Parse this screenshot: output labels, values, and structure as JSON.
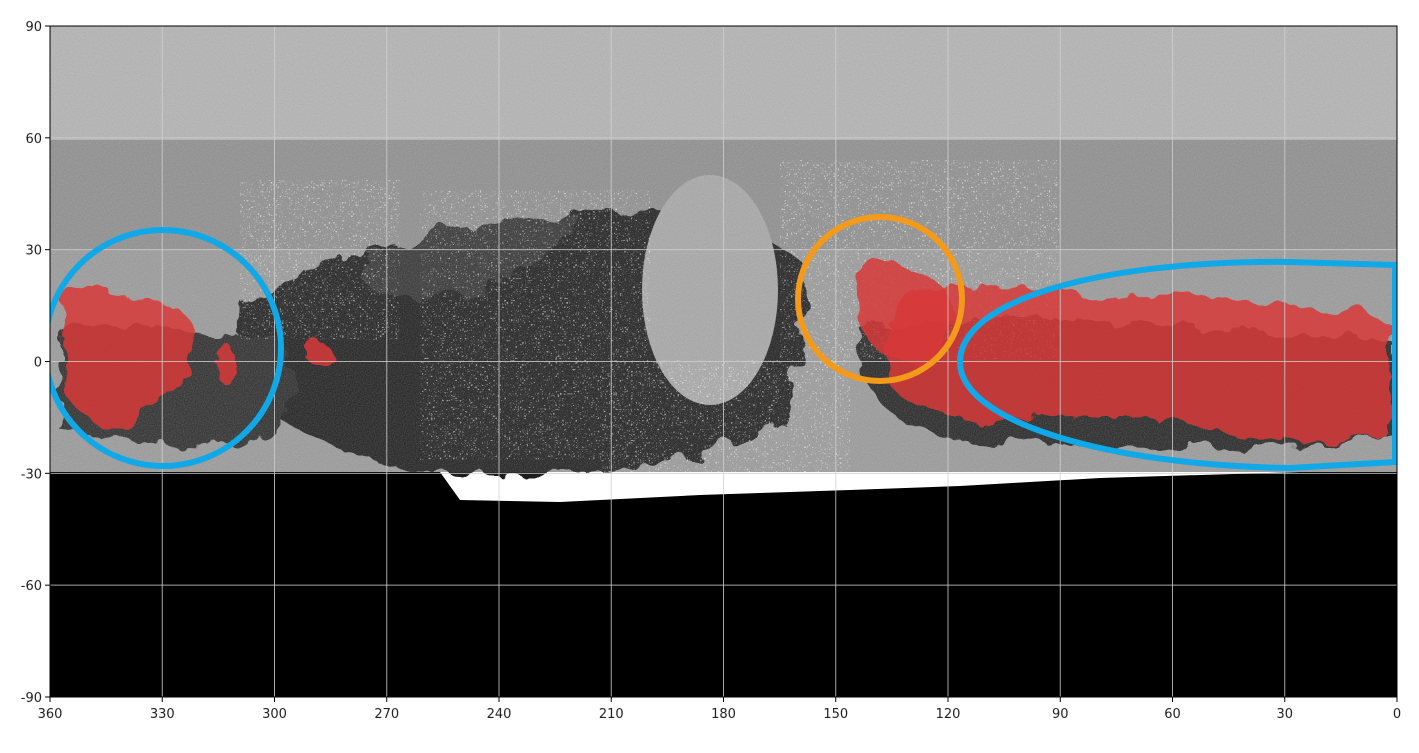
{
  "map": {
    "projection": "equirectangular",
    "longitude_axis": {
      "direction": "decreasing-left-to-right",
      "range": [
        360,
        0
      ],
      "ticks": [
        "360",
        "330",
        "300",
        "270",
        "240",
        "210",
        "180",
        "150",
        "120",
        "90",
        "60",
        "30",
        "0"
      ]
    },
    "latitude_axis": {
      "range": [
        -90,
        90
      ],
      "ticks": [
        "90",
        "60",
        "30",
        "0",
        "-30",
        "-60",
        "-90"
      ]
    },
    "grid": true,
    "colors": {
      "highlight_overlay": "#d83a3a",
      "circle_blue": "#11a8e8",
      "circle_orange": "#f39a1a",
      "no_data": "#000000",
      "grid_line": "#d0d0d0"
    },
    "regions": [
      {
        "name": "red-overlay-west",
        "lon_center": 340,
        "lat_center": 0
      },
      {
        "name": "red-overlay-center",
        "lon_center": 140,
        "lat_center": 17
      },
      {
        "name": "red-overlay-east",
        "lon_center": 55,
        "lat_center": 0
      }
    ],
    "annotations": [
      {
        "shape": "ellipse",
        "color": "blue",
        "lon_range": [
          362,
          300
        ],
        "lat_range": [
          -28,
          35
        ]
      },
      {
        "shape": "circle",
        "color": "orange",
        "lon_range": [
          160,
          122
        ],
        "lat_range": [
          -5,
          37
        ]
      },
      {
        "shape": "ellipse",
        "color": "blue",
        "lon_range": [
          108,
          0
        ],
        "lat_range": [
          -28,
          26
        ]
      }
    ]
  }
}
